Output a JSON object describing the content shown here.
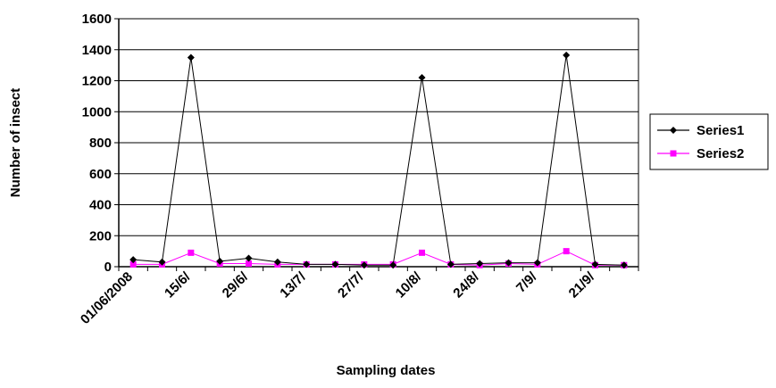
{
  "chart_data": {
    "type": "line",
    "xlabel": "Sampling dates",
    "ylabel": "Number of insect",
    "ylim": [
      0,
      1600
    ],
    "yticks": [
      0,
      200,
      400,
      600,
      800,
      1000,
      1200,
      1400,
      1600
    ],
    "x": [
      "01/06/2008",
      "",
      "15/6/",
      "",
      "29/6/",
      "",
      "13/7/",
      "",
      "27/7/",
      "",
      "10/8/",
      "",
      "24/8/",
      "",
      "7/9/",
      "",
      "21/9/",
      ""
    ],
    "grid": "horizontal",
    "legend": "right",
    "series": [
      {
        "name": "Series1",
        "color": "#000000",
        "marker": "diamond",
        "values": [
          45,
          30,
          1350,
          35,
          55,
          30,
          15,
          15,
          10,
          10,
          1220,
          15,
          20,
          25,
          25,
          1365,
          15,
          10
        ]
      },
      {
        "name": "Series2",
        "color": "#ff00ff",
        "marker": "square",
        "values": [
          15,
          15,
          90,
          20,
          20,
          15,
          15,
          15,
          15,
          15,
          90,
          15,
          10,
          20,
          15,
          100,
          10,
          10
        ]
      }
    ]
  }
}
